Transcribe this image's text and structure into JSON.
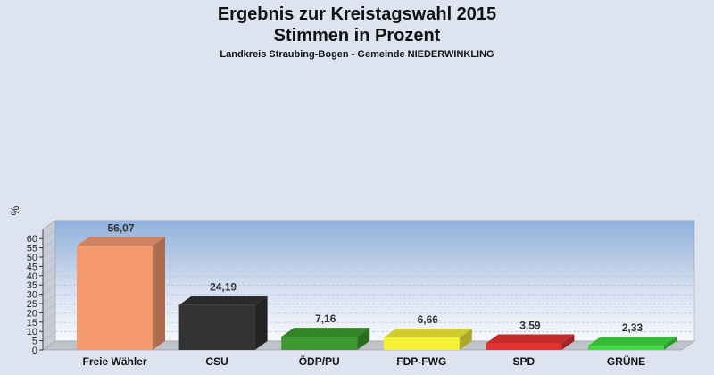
{
  "chart_data": {
    "type": "bar",
    "title_line1": "Ergebnis zur Kreistagswahl 2015",
    "title_line2": "Stimmen in Prozent",
    "subtitle": "Landkreis Straubing-Bogen - Gemeinde NIEDERWINKLING",
    "ylabel": "%",
    "ylim": [
      0,
      65
    ],
    "yticks": [
      0,
      5,
      10,
      15,
      20,
      25,
      30,
      35,
      40,
      45,
      50,
      55,
      60
    ],
    "grid": true,
    "categories": [
      "Freie Wähler",
      "CSU",
      "ÖDP/PU",
      "FDP-FWG",
      "SPD",
      "GRÜNE"
    ],
    "values": [
      56.07,
      24.19,
      7.16,
      6.66,
      3.59,
      2.33
    ],
    "value_labels": [
      "56,07",
      "24,19",
      "7,16",
      "6,66",
      "3,59",
      "2,33"
    ],
    "colors": [
      "#f59a6e",
      "#333333",
      "#3c9a2e",
      "#f5f035",
      "#e83232",
      "#3fdc3f"
    ]
  }
}
